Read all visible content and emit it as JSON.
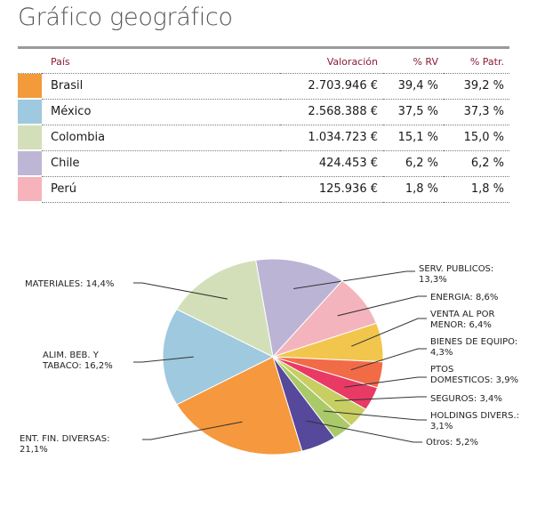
{
  "page": {
    "title": "Gráfico geográfico"
  },
  "table": {
    "headers": {
      "country": "País",
      "valuation": "Valoración",
      "rv": "% RV",
      "pat": "% Patr."
    },
    "rows": [
      {
        "color": "#f39a3a",
        "country": "Brasil",
        "valuation": "2.703.946 €",
        "rv": "39,4 %",
        "pat": "39,2 %"
      },
      {
        "color": "#9ec9df",
        "country": "México",
        "valuation": "2.568.388 €",
        "rv": "37,5 %",
        "pat": "37,3 %"
      },
      {
        "color": "#d3dfb9",
        "country": "Colombia",
        "valuation": "1.034.723 €",
        "rv": "15,1 %",
        "pat": "15,0 %"
      },
      {
        "color": "#beb6d5",
        "country": "Chile",
        "valuation": "424.453 €",
        "rv": "6,2 %",
        "pat": "6,2 %"
      },
      {
        "color": "#f6b3bc",
        "country": "Perú",
        "valuation": "125.936 €",
        "rv": "1,8 %",
        "pat": "1,8 %"
      }
    ]
  },
  "chart_data": {
    "type": "pie",
    "title": "",
    "slices": [
      {
        "label": "SERV. PUBLICOS: 13,3%",
        "value": 13.3,
        "color": "#bcb4d4"
      },
      {
        "label": "ENERGIA: 8,6%",
        "value": 8.6,
        "color": "#f4b4bd"
      },
      {
        "label": "VENTA AL POR MENOR: 6,4%",
        "value": 6.4,
        "color": "#f2c64d"
      },
      {
        "label": "BIENES DE EQUIPO: 4,3%",
        "value": 4.3,
        "color": "#f26b47"
      },
      {
        "label": "PTOS DOMESTICOS: 3,9%",
        "value": 3.9,
        "color": "#e83a64"
      },
      {
        "label": "SEGUROS: 3,4%",
        "value": 3.4,
        "color": "#c8cf62"
      },
      {
        "label": "HOLDINGS DIVERS.: 3,1%",
        "value": 3.1,
        "color": "#aac968"
      },
      {
        "label": "Otros: 5,2%",
        "value": 5.2,
        "color": "#56489a"
      },
      {
        "label": "ENT. FIN. DIVERSAS: 21,1%",
        "value": 21.1,
        "color": "#f6983d"
      },
      {
        "label": "ALIM. BEB. Y TABACO: 16,2%",
        "value": 16.2,
        "color": "#9ec9df"
      },
      {
        "label": "MATERIALES: 14,4%",
        "value": 14.4,
        "color": "#d3dfb9"
      }
    ],
    "label_lines": [
      [
        "SERV. PUBLICOS:",
        "13,3%"
      ],
      [
        "ENERGIA: 8,6%"
      ],
      [
        "VENTA AL POR",
        "MENOR: 6,4%"
      ],
      [
        "BIENES DE EQUIPO:",
        "4,3%"
      ],
      [
        "PTOS",
        "DOMESTICOS: 3,9%"
      ],
      [
        "SEGUROS: 3,4%"
      ],
      [
        "HOLDINGS DIVERS.:",
        "3,1%"
      ],
      [
        "Otros: 5,2%"
      ],
      [
        "ENT. FIN. DIVERSAS:",
        "21,1%"
      ],
      [
        "ALIM. BEB. Y",
        "TABACO: 16,2%"
      ],
      [
        "MATERIALES: 14,4%"
      ]
    ]
  }
}
